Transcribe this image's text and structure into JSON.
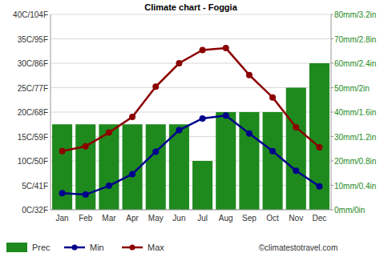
{
  "chart_data": {
    "type": "bar",
    "title": "Climate chart - Foggia",
    "annotation": "©climatestotravel.com",
    "categories": [
      "Jan",
      "Feb",
      "Mar",
      "Apr",
      "May",
      "Jun",
      "Jul",
      "Aug",
      "Sep",
      "Oct",
      "Nov",
      "Dec"
    ],
    "series": [
      {
        "name": "Prec",
        "type": "bar",
        "axis": "y2",
        "color": "#1e8a1e",
        "values": [
          35,
          35,
          35,
          35,
          35,
          35,
          20,
          40,
          40,
          40,
          50,
          60
        ]
      },
      {
        "name": "Min",
        "type": "line",
        "color": "#00008b",
        "marker": "circle",
        "values": [
          3.4,
          3.1,
          4.9,
          7.3,
          11.9,
          16.3,
          18.7,
          19.3,
          15.6,
          12,
          8,
          4.8
        ]
      },
      {
        "name": "Max",
        "type": "line",
        "color": "#8b0000",
        "marker": "circle",
        "values": [
          12,
          13,
          15.8,
          19,
          25.2,
          30,
          32.7,
          33.1,
          27.6,
          23,
          16.9,
          12.8
        ]
      }
    ],
    "ylim": [
      0,
      40
    ],
    "yticks": [
      {
        "value": 0,
        "label": "0C/32F"
      },
      {
        "value": 5,
        "label": "5C/41F"
      },
      {
        "value": 10,
        "label": "10C/50F"
      },
      {
        "value": 15,
        "label": "15C/59F"
      },
      {
        "value": 20,
        "label": "20C/68F"
      },
      {
        "value": 25,
        "label": "25C/77F"
      },
      {
        "value": 30,
        "label": "30C/86F"
      },
      {
        "value": 35,
        "label": "35C/95F"
      },
      {
        "value": 40,
        "label": "40C/104F"
      }
    ],
    "y2lim": [
      0,
      80
    ],
    "y2ticks": [
      {
        "value": 0,
        "label": "0mm/0in"
      },
      {
        "value": 10,
        "label": "10mm/0.4in"
      },
      {
        "value": 20,
        "label": "20mm/0.8in"
      },
      {
        "value": 30,
        "label": "30mm/1.2in"
      },
      {
        "value": 40,
        "label": "40mm/1.6in"
      },
      {
        "value": 50,
        "label": "50mm/2in"
      },
      {
        "value": 60,
        "label": "60mm/2.4in"
      },
      {
        "value": 70,
        "label": "70mm/2.8in"
      },
      {
        "value": 80,
        "label": "80mm/3.2in"
      }
    ],
    "grid": true,
    "legend": "bottom"
  }
}
